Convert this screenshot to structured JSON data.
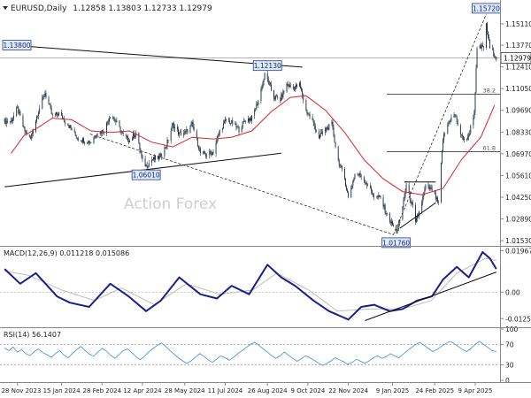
{
  "chart_data": [
    {
      "type": "candlestick",
      "panel": "price",
      "symbol_header": "EURUSD,Daily",
      "ohlc_header": "1.12858 1.13803 1.12733 1.12979",
      "watermark": "Action Forex",
      "ylim": [
        1.012,
        1.166
      ],
      "y_ticks": [
        "1.15110",
        "1.13770",
        "1.12410",
        "1.11050",
        "1.09690",
        "1.08330",
        "1.06970",
        "1.05610",
        "1.04250",
        "1.02890",
        "1.01530"
      ],
      "last_price": "1.12979",
      "price_labels": [
        {
          "text": "1.13800",
          "date": "2023-11-28",
          "value": 1.138
        },
        {
          "text": "1.06010",
          "date": "2024-04-16",
          "value": 1.0601
        },
        {
          "text": "1.12130",
          "date": "2024-08-26",
          "value": 1.1213
        },
        {
          "text": "1.01760",
          "date": "2025-01-13",
          "value": 1.0176
        },
        {
          "text": "1.15720",
          "date": "2025-04-21",
          "value": 1.1572
        }
      ],
      "fib_levels": [
        {
          "label": "38.2",
          "value": 1.107
        },
        {
          "label": "61.8",
          "value": 1.071
        }
      ],
      "close_path": [
        [
          "2023-11-21",
          1.09
        ],
        [
          "2023-11-28",
          1.098
        ],
        [
          "2023-12-05",
          1.085
        ],
        [
          "2023-12-12",
          1.079
        ],
        [
          "2023-12-20",
          1.095
        ],
        [
          "2023-12-28",
          1.108
        ],
        [
          "2024-01-05",
          1.093
        ],
        [
          "2024-01-12",
          1.095
        ],
        [
          "2024-01-19",
          1.09
        ],
        [
          "2024-01-26",
          1.085
        ],
        [
          "2024-02-02",
          1.079
        ],
        [
          "2024-02-09",
          1.078
        ],
        [
          "2024-02-16",
          1.077
        ],
        [
          "2024-02-23",
          1.083
        ],
        [
          "2024-03-01",
          1.084
        ],
        [
          "2024-03-08",
          1.094
        ],
        [
          "2024-03-15",
          1.089
        ],
        [
          "2024-03-22",
          1.081
        ],
        [
          "2024-03-29",
          1.078
        ],
        [
          "2024-04-05",
          1.083
        ],
        [
          "2024-04-12",
          1.065
        ],
        [
          "2024-04-16",
          1.062
        ],
        [
          "2024-04-22",
          1.066
        ],
        [
          "2024-04-30",
          1.067
        ],
        [
          "2024-05-08",
          1.075
        ],
        [
          "2024-05-15",
          1.088
        ],
        [
          "2024-05-22",
          1.082
        ],
        [
          "2024-05-29",
          1.083
        ],
        [
          "2024-06-05",
          1.088
        ],
        [
          "2024-06-14",
          1.07
        ],
        [
          "2024-06-21",
          1.069
        ],
        [
          "2024-06-28",
          1.071
        ],
        [
          "2024-07-05",
          1.084
        ],
        [
          "2024-07-12",
          1.091
        ],
        [
          "2024-07-18",
          1.089
        ],
        [
          "2024-07-26",
          1.085
        ],
        [
          "2024-08-02",
          1.091
        ],
        [
          "2024-08-09",
          1.092
        ],
        [
          "2024-08-16",
          1.103
        ],
        [
          "2024-08-23",
          1.119
        ],
        [
          "2024-08-26",
          1.116
        ],
        [
          "2024-09-02",
          1.105
        ],
        [
          "2024-09-09",
          1.104
        ],
        [
          "2024-09-16",
          1.113
        ],
        [
          "2024-09-23",
          1.111
        ],
        [
          "2024-09-30",
          1.113
        ],
        [
          "2024-10-07",
          1.097
        ],
        [
          "2024-10-14",
          1.09
        ],
        [
          "2024-10-21",
          1.08
        ],
        [
          "2024-10-28",
          1.085
        ],
        [
          "2024-11-04",
          1.088
        ],
        [
          "2024-11-11",
          1.065
        ],
        [
          "2024-11-18",
          1.054
        ],
        [
          "2024-11-22",
          1.042
        ],
        [
          "2024-11-29",
          1.057
        ],
        [
          "2024-12-06",
          1.056
        ],
        [
          "2024-12-13",
          1.05
        ],
        [
          "2024-12-20",
          1.043
        ],
        [
          "2024-12-27",
          1.042
        ],
        [
          "2025-01-03",
          1.031
        ],
        [
          "2025-01-10",
          1.024
        ],
        [
          "2025-01-13",
          1.021
        ],
        [
          "2025-01-17",
          1.027
        ],
        [
          "2025-01-24",
          1.05
        ],
        [
          "2025-01-31",
          1.036
        ],
        [
          "2025-02-03",
          1.026
        ],
        [
          "2025-02-07",
          1.033
        ],
        [
          "2025-02-14",
          1.049
        ],
        [
          "2025-02-21",
          1.047
        ],
        [
          "2025-02-28",
          1.038
        ],
        [
          "2025-03-05",
          1.079
        ],
        [
          "2025-03-12",
          1.091
        ],
        [
          "2025-03-18",
          1.094
        ],
        [
          "2025-03-25",
          1.08
        ],
        [
          "2025-04-01",
          1.079
        ],
        [
          "2025-04-08",
          1.096
        ],
        [
          "2025-04-11",
          1.135
        ],
        [
          "2025-04-18",
          1.137
        ],
        [
          "2025-04-21",
          1.15
        ],
        [
          "2025-04-25",
          1.136
        ],
        [
          "2025-05-02",
          1.13
        ]
      ],
      "sma_path": [
        [
          "2023-11-21",
          1.07
        ],
        [
          "2023-12-05",
          1.081
        ],
        [
          "2023-12-20",
          1.086
        ],
        [
          "2024-01-05",
          1.092
        ],
        [
          "2024-01-26",
          1.091
        ],
        [
          "2024-02-16",
          1.084
        ],
        [
          "2024-03-08",
          1.083
        ],
        [
          "2024-03-29",
          1.084
        ],
        [
          "2024-04-22",
          1.077
        ],
        [
          "2024-05-15",
          1.074
        ],
        [
          "2024-06-05",
          1.08
        ],
        [
          "2024-06-28",
          1.079
        ],
        [
          "2024-07-18",
          1.08
        ],
        [
          "2024-08-09",
          1.084
        ],
        [
          "2024-08-30",
          1.096
        ],
        [
          "2024-09-20",
          1.105
        ],
        [
          "2024-10-07",
          1.106
        ],
        [
          "2024-10-28",
          1.097
        ],
        [
          "2024-11-18",
          1.083
        ],
        [
          "2024-12-09",
          1.066
        ],
        [
          "2024-12-30",
          1.054
        ],
        [
          "2025-01-20",
          1.046
        ],
        [
          "2025-02-10",
          1.044
        ],
        [
          "2025-03-05",
          1.048
        ],
        [
          "2025-03-25",
          1.066
        ],
        [
          "2025-04-15",
          1.08
        ],
        [
          "2025-04-30",
          1.1
        ]
      ],
      "trendlines": [
        {
          "from": [
            "2023-11-14",
            1.138
          ],
          "to": [
            "2024-10-03",
            1.124
          ],
          "style": "solid"
        },
        {
          "from": [
            "2023-11-14",
            1.049
          ],
          "to": [
            "2024-09-10",
            1.07
          ],
          "style": "solid"
        },
        {
          "from": [
            "2024-02-15",
            1.082
          ],
          "to": [
            "2025-01-10",
            1.019
          ],
          "style": "dashed"
        },
        {
          "from": [
            "2025-01-10",
            1.019
          ],
          "to": [
            "2025-04-21",
            1.1572
          ],
          "style": "dashed"
        },
        {
          "from": [
            "2025-01-17",
            1.023
          ],
          "to": [
            "2025-02-25",
            1.039
          ],
          "style": "solid"
        },
        {
          "from": [
            "2025-01-22",
            1.052
          ],
          "to": [
            "2025-02-25",
            1.052
          ],
          "style": "solid"
        }
      ]
    },
    {
      "type": "line",
      "panel": "macd",
      "header": "MACD(12,26,9) 0.011218 0.015086",
      "ylim": [
        -0.0158,
        0.0215
      ],
      "y_ticks": [
        "0.019679",
        "0.00",
        "-0.012552"
      ],
      "macd_path": [
        [
          "2023-11-14",
          0.011
        ],
        [
          "2023-12-01",
          0.004
        ],
        [
          "2023-12-18",
          0.009
        ],
        [
          "2024-01-10",
          -0.002
        ],
        [
          "2024-01-24",
          -0.005
        ],
        [
          "2024-02-14",
          -0.007
        ],
        [
          "2024-03-08",
          0.004
        ],
        [
          "2024-03-28",
          -0.002
        ],
        [
          "2024-04-16",
          -0.009
        ],
        [
          "2024-05-02",
          -0.004
        ],
        [
          "2024-05-22",
          0.007
        ],
        [
          "2024-06-14",
          -0.001
        ],
        [
          "2024-07-02",
          -0.003
        ],
        [
          "2024-07-18",
          0.003
        ],
        [
          "2024-08-06",
          -0.001
        ],
        [
          "2024-08-26",
          0.013
        ],
        [
          "2024-09-10",
          0.007
        ],
        [
          "2024-09-25",
          0.003
        ],
        [
          "2024-10-15",
          -0.004
        ],
        [
          "2024-11-01",
          -0.009
        ],
        [
          "2024-11-22",
          -0.013
        ],
        [
          "2024-12-06",
          -0.007
        ],
        [
          "2024-12-20",
          -0.006
        ],
        [
          "2025-01-06",
          -0.009
        ],
        [
          "2025-01-20",
          -0.008
        ],
        [
          "2025-02-05",
          -0.004
        ],
        [
          "2025-02-21",
          -0.002
        ],
        [
          "2025-03-05",
          0.006
        ],
        [
          "2025-03-20",
          0.012
        ],
        [
          "2025-04-02",
          0.007
        ],
        [
          "2025-04-17",
          0.019
        ],
        [
          "2025-04-25",
          0.016
        ],
        [
          "2025-05-02",
          0.011
        ]
      ],
      "signal_path": [
        [
          "2023-11-14",
          0.01
        ],
        [
          "2023-12-10",
          0.008
        ],
        [
          "2024-01-15",
          0.001
        ],
        [
          "2024-02-20",
          -0.004
        ],
        [
          "2024-03-20",
          0.002
        ],
        [
          "2024-04-25",
          -0.006
        ],
        [
          "2024-05-30",
          0.004
        ],
        [
          "2024-07-05",
          -0.001
        ],
        [
          "2024-08-10",
          0.001
        ],
        [
          "2024-09-05",
          0.009
        ],
        [
          "2024-10-10",
          0.001
        ],
        [
          "2024-11-10",
          -0.009
        ],
        [
          "2024-12-15",
          -0.008
        ],
        [
          "2025-01-20",
          -0.008
        ],
        [
          "2025-02-20",
          -0.004
        ],
        [
          "2025-03-20",
          0.009
        ],
        [
          "2025-04-20",
          0.016
        ],
        [
          "2025-05-02",
          0.015
        ]
      ],
      "trendline": {
        "from": [
          "2024-12-10",
          -0.0135
        ],
        "to": [
          "2025-05-02",
          0.0095
        ]
      }
    },
    {
      "type": "line",
      "panel": "rsi",
      "header": "RSI(14) 56.1407",
      "ylim": [
        0,
        100
      ],
      "y_ticks": [
        "100",
        "70",
        "30",
        "0"
      ],
      "levels": [
        70,
        30
      ],
      "rsi_values": [
        63,
        58,
        65,
        55,
        60,
        52,
        48,
        56,
        61,
        54,
        50,
        45,
        52,
        58,
        49,
        44,
        52,
        60,
        66,
        58,
        51,
        47,
        55,
        62,
        57,
        49,
        43,
        50,
        58,
        61,
        54,
        46,
        40,
        47,
        55,
        62,
        68,
        73,
        66,
        58,
        51,
        44,
        38,
        33,
        38,
        45,
        52,
        47,
        40,
        35,
        41,
        48,
        44,
        39,
        45,
        52,
        58,
        64,
        70,
        74,
        68,
        61,
        55,
        48,
        43,
        48,
        55,
        49,
        43,
        37,
        42,
        48,
        44,
        39,
        34,
        29,
        33,
        38,
        44,
        40,
        36,
        31,
        35,
        41,
        37,
        33,
        38,
        44,
        48,
        43,
        46,
        52,
        48,
        44,
        51,
        58,
        64,
        70,
        74,
        68,
        62,
        56,
        60,
        66,
        71,
        76,
        72,
        66,
        60,
        56,
        62,
        70,
        76,
        70,
        64,
        58,
        56
      ]
    }
  ],
  "x_axis_labels": [
    {
      "text": "28 Nov 2023",
      "date": "2023-11-28"
    },
    {
      "text": "15 Jan 2024",
      "date": "2024-01-15"
    },
    {
      "text": "28 Feb 2024",
      "date": "2024-02-28"
    },
    {
      "text": "12 Apr 2024",
      "date": "2024-04-12"
    },
    {
      "text": "28 May 2024",
      "date": "2024-05-28"
    },
    {
      "text": "11 Jul 2024",
      "date": "2024-07-11"
    },
    {
      "text": "26 Aug 2024",
      "date": "2024-08-26"
    },
    {
      "text": "9 Oct 2024",
      "date": "2024-10-09"
    },
    {
      "text": "22 Nov 2024",
      "date": "2024-11-22"
    },
    {
      "text": "9 Jan 2025",
      "date": "2025-01-09"
    },
    {
      "text": "24 Feb 2025",
      "date": "2025-02-24"
    },
    {
      "text": "9 Apr 2025",
      "date": "2025-04-09"
    }
  ],
  "colors": {
    "candle": "#1f2d3d",
    "sma": "#d8262b",
    "macd": "#1a1f8c",
    "signal": "#bdbdbd",
    "rsi": "#3a8fdd",
    "label_box_fill": "#dde9f8",
    "label_box_border": "#2a3f8f",
    "watermark": "#cfcfcf",
    "last_price_box": "#ffffff"
  },
  "icons": {
    "header_arrow": "down-triangle-icon"
  }
}
